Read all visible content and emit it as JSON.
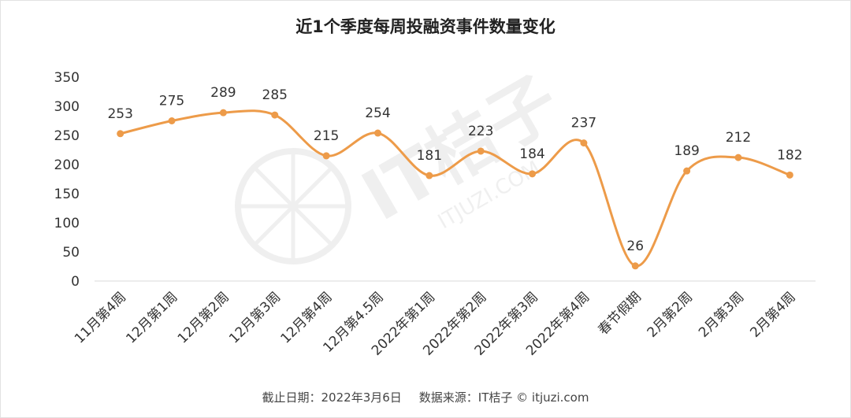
{
  "chart_data": {
    "type": "line",
    "title": "近1个季度每周投融资事件数量变化",
    "xlabel": "",
    "ylabel": "",
    "ylim": [
      0,
      350
    ],
    "yticks": [
      0,
      50,
      100,
      150,
      200,
      250,
      300,
      350
    ],
    "grid": false,
    "legend": "none",
    "line_color": "#ED9B49",
    "categories": [
      "11月第4周",
      "12月第1周",
      "12月第2周",
      "12月第3周",
      "12月第4周",
      "12月第4.5周",
      "2022年第1周",
      "2022年第2周",
      "2022年第3周",
      "2022年第4周",
      "春节假期",
      "2月第2周",
      "2月第3周",
      "2月第4周"
    ],
    "values": [
      253,
      275,
      289,
      285,
      215,
      254,
      181,
      223,
      184,
      237,
      26,
      189,
      212,
      182
    ]
  },
  "footer": {
    "date": "截止日期：2022年3月6日",
    "source": "数据来源：IT桔子 © itjuzi.com"
  },
  "watermark": {
    "brand": "IT桔子",
    "url": "ITJUZI.COM"
  }
}
